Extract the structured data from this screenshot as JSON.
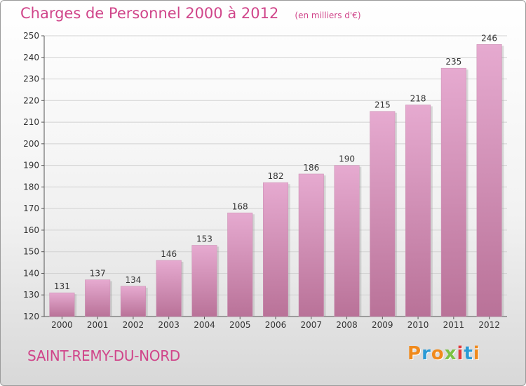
{
  "header": {
    "title": "Charges de Personnel 2000 à 2012",
    "units": "(en milliers d'€)"
  },
  "footer": {
    "city": "SAINT-REMY-DU-NORD",
    "logo_text": "Proxiti"
  },
  "colors": {
    "bar_top": "#e6aad0",
    "bar_bottom": "#b97298",
    "title": "#d0458a",
    "logo": [
      "#f08a1c",
      "#2a9ad6",
      "#f08a1c",
      "#7cc242",
      "#e23b3b",
      "#2a9ad6",
      "#f08a1c"
    ]
  },
  "chart_data": {
    "type": "bar",
    "title": "Charges de Personnel 2000 à 2012",
    "subtitle": "(en milliers d'€)",
    "xlabel": "",
    "ylabel": "",
    "categories": [
      "2000",
      "2001",
      "2002",
      "2003",
      "2004",
      "2005",
      "2006",
      "2007",
      "2008",
      "2009",
      "2010",
      "2011",
      "2012"
    ],
    "values": [
      131,
      137,
      134,
      146,
      153,
      168,
      182,
      186,
      190,
      215,
      218,
      235,
      246
    ],
    "ylim": [
      120,
      250
    ],
    "yticks": [
      120,
      130,
      140,
      150,
      160,
      170,
      180,
      190,
      200,
      210,
      220,
      230,
      240,
      250
    ],
    "grid": true,
    "data_labels": true
  }
}
